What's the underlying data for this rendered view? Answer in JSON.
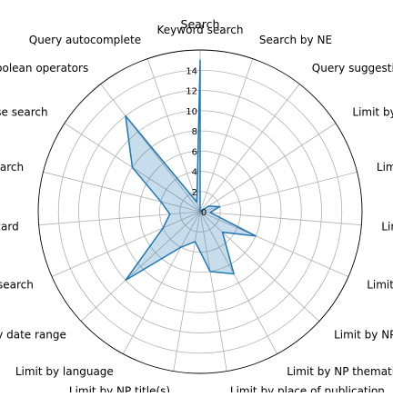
{
  "chart_data": {
    "type": "radar",
    "title": "Search",
    "rmax": 16,
    "ticks": [
      "0",
      "2",
      "4",
      "6",
      "8",
      "10",
      "12",
      "14"
    ],
    "categories": [
      "Keyword search",
      "Search by NE",
      "Query suggestion",
      "Limit by license/accessibility",
      "Limit by archival library",
      "Limit by article length",
      "Limit by article category",
      "Limit by NP segments / zones",
      "Limit by NP thematic (from metadata)",
      "Limit by place of publication",
      "Limit by NP title(s)",
      "Limit by language",
      "Limit by date range",
      "Proximity search",
      "Wild card",
      "Fuzzy search",
      "Phrase search",
      "Boolean operators",
      "Query autocomplete"
    ],
    "series": [
      {
        "values": [
          15,
          0,
          0,
          1,
          2,
          1,
          6,
          3,
          7,
          6,
          3,
          4,
          10,
          4,
          3,
          4,
          8,
          12,
          1
        ]
      }
    ],
    "grid": true,
    "legend": "none"
  }
}
